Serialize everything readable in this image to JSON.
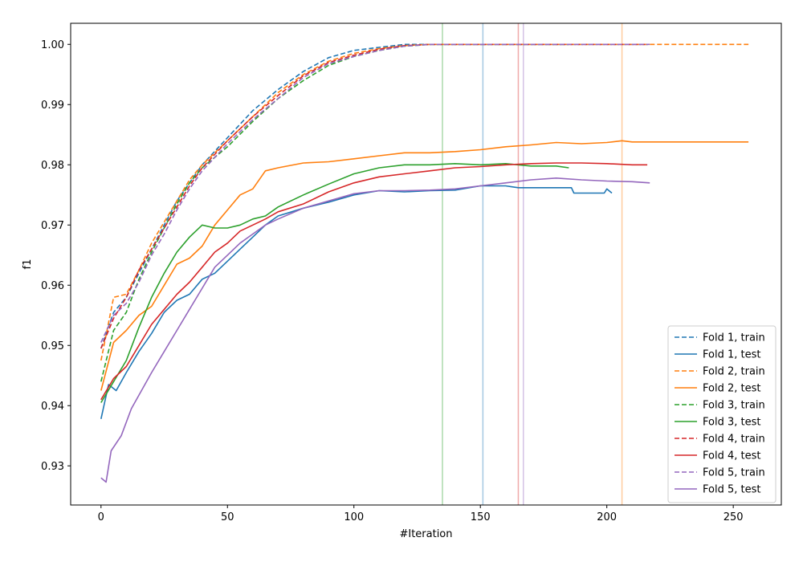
{
  "chart_data": {
    "type": "line",
    "xlabel": "#Iteration",
    "ylabel": "f1",
    "xlim": [
      -12,
      269
    ],
    "ylim": [
      0.9235,
      1.0035
    ],
    "xticks": [
      0,
      50,
      100,
      150,
      200,
      250
    ],
    "yticks": [
      0.93,
      0.94,
      0.95,
      0.96,
      0.97,
      0.98,
      0.99,
      1.0
    ],
    "ytick_labels": [
      "0.93",
      "0.94",
      "0.95",
      "0.96",
      "0.97",
      "0.98",
      "0.99",
      "1.00"
    ],
    "grid": false,
    "legend_position": "lower-right",
    "vlines": [
      {
        "x": 135,
        "color": "#2ca02c"
      },
      {
        "x": 151,
        "color": "#1f77b4"
      },
      {
        "x": 165,
        "color": "#d62728"
      },
      {
        "x": 167,
        "color": "#9467bd"
      },
      {
        "x": 206,
        "color": "#ff7f0e"
      }
    ],
    "series": [
      {
        "name": "Fold 1, train",
        "color": "#1f77b4",
        "dash": true,
        "points": [
          [
            0,
            0.9495
          ],
          [
            5,
            0.9555
          ],
          [
            10,
            0.958
          ],
          [
            15,
            0.962
          ],
          [
            20,
            0.966
          ],
          [
            25,
            0.97
          ],
          [
            30,
            0.974
          ],
          [
            35,
            0.977
          ],
          [
            40,
            0.98
          ],
          [
            50,
            0.9845
          ],
          [
            60,
            0.989
          ],
          [
            70,
            0.9925
          ],
          [
            80,
            0.9955
          ],
          [
            90,
            0.9978
          ],
          [
            100,
            0.999
          ],
          [
            110,
            0.9995
          ],
          [
            120,
            1.0
          ],
          [
            150,
            1.0
          ],
          [
            217,
            1.0
          ]
        ]
      },
      {
        "name": "Fold 1, test",
        "color": "#1f77b4",
        "dash": false,
        "points": [
          [
            0,
            0.9378
          ],
          [
            3,
            0.9435
          ],
          [
            6,
            0.9425
          ],
          [
            10,
            0.9455
          ],
          [
            15,
            0.949
          ],
          [
            20,
            0.952
          ],
          [
            25,
            0.9555
          ],
          [
            30,
            0.9575
          ],
          [
            35,
            0.9585
          ],
          [
            40,
            0.961
          ],
          [
            45,
            0.962
          ],
          [
            50,
            0.964
          ],
          [
            55,
            0.966
          ],
          [
            60,
            0.968
          ],
          [
            65,
            0.97
          ],
          [
            70,
            0.9715
          ],
          [
            80,
            0.9728
          ],
          [
            90,
            0.9738
          ],
          [
            100,
            0.975
          ],
          [
            110,
            0.9757
          ],
          [
            120,
            0.9755
          ],
          [
            130,
            0.9757
          ],
          [
            140,
            0.9758
          ],
          [
            150,
            0.9765
          ],
          [
            160,
            0.9765
          ],
          [
            165,
            0.9762
          ],
          [
            180,
            0.9762
          ],
          [
            186,
            0.9762
          ],
          [
            187,
            0.9753
          ],
          [
            199,
            0.9753
          ],
          [
            200,
            0.976
          ],
          [
            202,
            0.9753
          ]
        ]
      },
      {
        "name": "Fold 2, train",
        "color": "#ff7f0e",
        "dash": true,
        "points": [
          [
            0,
            0.9475
          ],
          [
            5,
            0.958
          ],
          [
            10,
            0.9585
          ],
          [
            15,
            0.9625
          ],
          [
            20,
            0.967
          ],
          [
            25,
            0.9705
          ],
          [
            30,
            0.974
          ],
          [
            35,
            0.9775
          ],
          [
            40,
            0.98
          ],
          [
            50,
            0.984
          ],
          [
            60,
            0.988
          ],
          [
            70,
            0.992
          ],
          [
            80,
            0.995
          ],
          [
            90,
            0.9972
          ],
          [
            100,
            0.9985
          ],
          [
            110,
            0.9993
          ],
          [
            120,
            0.9998
          ],
          [
            130,
            1.0
          ],
          [
            256,
            1.0
          ]
        ]
      },
      {
        "name": "Fold 2, test",
        "color": "#ff7f0e",
        "dash": false,
        "points": [
          [
            0,
            0.9425
          ],
          [
            5,
            0.9505
          ],
          [
            10,
            0.9525
          ],
          [
            15,
            0.955
          ],
          [
            20,
            0.9565
          ],
          [
            25,
            0.96
          ],
          [
            30,
            0.9635
          ],
          [
            35,
            0.9645
          ],
          [
            40,
            0.9665
          ],
          [
            45,
            0.97
          ],
          [
            50,
            0.9725
          ],
          [
            55,
            0.975
          ],
          [
            60,
            0.976
          ],
          [
            65,
            0.979
          ],
          [
            70,
            0.9795
          ],
          [
            80,
            0.9803
          ],
          [
            90,
            0.9805
          ],
          [
            100,
            0.981
          ],
          [
            110,
            0.9815
          ],
          [
            120,
            0.982
          ],
          [
            130,
            0.982
          ],
          [
            140,
            0.9822
          ],
          [
            150,
            0.9825
          ],
          [
            160,
            0.983
          ],
          [
            170,
            0.9833
          ],
          [
            180,
            0.9837
          ],
          [
            190,
            0.9835
          ],
          [
            200,
            0.9837
          ],
          [
            206,
            0.984
          ],
          [
            210,
            0.9838
          ],
          [
            256,
            0.9838
          ]
        ]
      },
      {
        "name": "Fold 3, train",
        "color": "#2ca02c",
        "dash": true,
        "points": [
          [
            0,
            0.944
          ],
          [
            5,
            0.9525
          ],
          [
            10,
            0.9555
          ],
          [
            15,
            0.961
          ],
          [
            20,
            0.9655
          ],
          [
            25,
            0.9695
          ],
          [
            30,
            0.9735
          ],
          [
            35,
            0.977
          ],
          [
            40,
            0.9795
          ],
          [
            50,
            0.983
          ],
          [
            60,
            0.9872
          ],
          [
            70,
            0.991
          ],
          [
            80,
            0.994
          ],
          [
            90,
            0.9965
          ],
          [
            100,
            0.998
          ],
          [
            110,
            0.999
          ],
          [
            120,
            0.9997
          ],
          [
            130,
            1.0
          ],
          [
            185,
            1.0
          ]
        ]
      },
      {
        "name": "Fold 3, test",
        "color": "#2ca02c",
        "dash": false,
        "points": [
          [
            0,
            0.9405
          ],
          [
            5,
            0.944
          ],
          [
            10,
            0.9475
          ],
          [
            15,
            0.953
          ],
          [
            20,
            0.958
          ],
          [
            25,
            0.962
          ],
          [
            30,
            0.9655
          ],
          [
            35,
            0.968
          ],
          [
            40,
            0.97
          ],
          [
            45,
            0.9695
          ],
          [
            50,
            0.9695
          ],
          [
            55,
            0.97
          ],
          [
            60,
            0.971
          ],
          [
            65,
            0.9715
          ],
          [
            70,
            0.973
          ],
          [
            80,
            0.975
          ],
          [
            90,
            0.9768
          ],
          [
            100,
            0.9785
          ],
          [
            110,
            0.9795
          ],
          [
            120,
            0.98
          ],
          [
            130,
            0.98
          ],
          [
            140,
            0.9802
          ],
          [
            150,
            0.98
          ],
          [
            160,
            0.9802
          ],
          [
            170,
            0.9798
          ],
          [
            180,
            0.9798
          ],
          [
            185,
            0.9795
          ]
        ]
      },
      {
        "name": "Fold 4, train",
        "color": "#d62728",
        "dash": true,
        "points": [
          [
            0,
            0.9495
          ],
          [
            5,
            0.9545
          ],
          [
            10,
            0.958
          ],
          [
            15,
            0.9625
          ],
          [
            20,
            0.966
          ],
          [
            25,
            0.9695
          ],
          [
            30,
            0.973
          ],
          [
            35,
            0.9765
          ],
          [
            40,
            0.9795
          ],
          [
            50,
            0.984
          ],
          [
            60,
            0.988
          ],
          [
            70,
            0.9915
          ],
          [
            80,
            0.9948
          ],
          [
            90,
            0.997
          ],
          [
            100,
            0.9982
          ],
          [
            110,
            0.9992
          ],
          [
            120,
            0.9998
          ],
          [
            130,
            1.0
          ],
          [
            216,
            1.0
          ]
        ]
      },
      {
        "name": "Fold 4, test",
        "color": "#d62728",
        "dash": false,
        "points": [
          [
            0,
            0.941
          ],
          [
            5,
            0.9445
          ],
          [
            10,
            0.9465
          ],
          [
            15,
            0.95
          ],
          [
            20,
            0.9535
          ],
          [
            25,
            0.956
          ],
          [
            30,
            0.9585
          ],
          [
            35,
            0.9605
          ],
          [
            40,
            0.963
          ],
          [
            45,
            0.9655
          ],
          [
            50,
            0.967
          ],
          [
            55,
            0.969
          ],
          [
            60,
            0.97
          ],
          [
            65,
            0.971
          ],
          [
            70,
            0.9722
          ],
          [
            80,
            0.9735
          ],
          [
            90,
            0.9755
          ],
          [
            100,
            0.977
          ],
          [
            110,
            0.978
          ],
          [
            120,
            0.9785
          ],
          [
            130,
            0.979
          ],
          [
            140,
            0.9795
          ],
          [
            150,
            0.9797
          ],
          [
            160,
            0.98
          ],
          [
            170,
            0.9802
          ],
          [
            180,
            0.9803
          ],
          [
            190,
            0.9803
          ],
          [
            200,
            0.9802
          ],
          [
            210,
            0.98
          ],
          [
            216,
            0.98
          ]
        ]
      },
      {
        "name": "Fold 5, train",
        "color": "#9467bd",
        "dash": true,
        "points": [
          [
            0,
            0.9505
          ],
          [
            5,
            0.955
          ],
          [
            10,
            0.957
          ],
          [
            15,
            0.9605
          ],
          [
            20,
            0.965
          ],
          [
            25,
            0.9685
          ],
          [
            30,
            0.9725
          ],
          [
            35,
            0.976
          ],
          [
            40,
            0.979
          ],
          [
            50,
            0.9835
          ],
          [
            60,
            0.9875
          ],
          [
            70,
            0.991
          ],
          [
            80,
            0.9945
          ],
          [
            90,
            0.9968
          ],
          [
            100,
            0.998
          ],
          [
            110,
            0.999
          ],
          [
            120,
            0.9997
          ],
          [
            130,
            1.0
          ],
          [
            217,
            1.0
          ]
        ]
      },
      {
        "name": "Fold 5, test",
        "color": "#9467bd",
        "dash": false,
        "points": [
          [
            0,
            0.928
          ],
          [
            2,
            0.9273
          ],
          [
            4,
            0.9325
          ],
          [
            8,
            0.935
          ],
          [
            12,
            0.9395
          ],
          [
            16,
            0.9425
          ],
          [
            20,
            0.9455
          ],
          [
            25,
            0.949
          ],
          [
            30,
            0.9525
          ],
          [
            35,
            0.956
          ],
          [
            40,
            0.9595
          ],
          [
            45,
            0.963
          ],
          [
            50,
            0.965
          ],
          [
            55,
            0.967
          ],
          [
            60,
            0.9685
          ],
          [
            65,
            0.97
          ],
          [
            70,
            0.971
          ],
          [
            80,
            0.9728
          ],
          [
            90,
            0.974
          ],
          [
            100,
            0.9752
          ],
          [
            110,
            0.9757
          ],
          [
            120,
            0.9757
          ],
          [
            130,
            0.9758
          ],
          [
            140,
            0.976
          ],
          [
            150,
            0.9765
          ],
          [
            160,
            0.977
          ],
          [
            170,
            0.9775
          ],
          [
            180,
            0.9778
          ],
          [
            190,
            0.9775
          ],
          [
            200,
            0.9773
          ],
          [
            210,
            0.9772
          ],
          [
            217,
            0.977
          ]
        ]
      }
    ]
  }
}
